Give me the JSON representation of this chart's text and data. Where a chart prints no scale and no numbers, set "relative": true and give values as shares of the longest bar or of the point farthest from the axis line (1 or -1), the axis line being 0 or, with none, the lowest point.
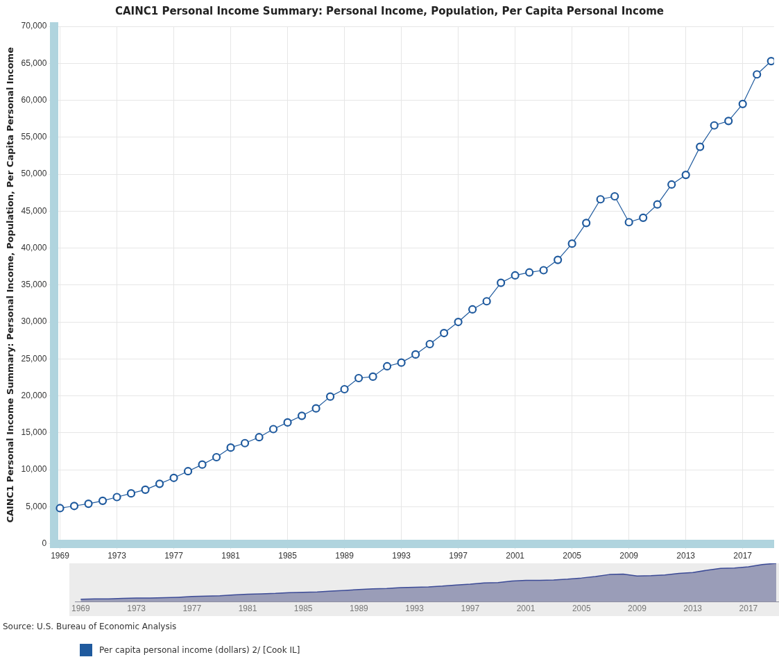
{
  "chart_data": [
    {
      "type": "line",
      "title": "CAINC1 Personal Income Summary: Personal Income, Population, Per Capita Personal Income",
      "ylabel": "CAINC1 Personal Income Summary: Personal Income, Population, Per Capita Personal Income",
      "x": [
        1969,
        1970,
        1971,
        1972,
        1973,
        1974,
        1975,
        1976,
        1977,
        1978,
        1979,
        1980,
        1981,
        1982,
        1983,
        1984,
        1985,
        1986,
        1987,
        1988,
        1989,
        1990,
        1991,
        1992,
        1993,
        1994,
        1995,
        1996,
        1997,
        1998,
        1999,
        2000,
        2001,
        2002,
        2003,
        2004,
        2005,
        2006,
        2007,
        2008,
        2009,
        2010,
        2011,
        2012,
        2013,
        2014,
        2015,
        2016,
        2017,
        2018,
        2019
      ],
      "series": [
        {
          "name": "Per capita personal income (dollars) 2/ [Cook IL]",
          "color": "#1f5a9e",
          "values": [
            4800,
            5100,
            5400,
            5800,
            6300,
            6800,
            7300,
            8100,
            8900,
            9800,
            10700,
            11700,
            13000,
            13600,
            14400,
            15500,
            16400,
            17300,
            18300,
            19900,
            20900,
            22400,
            22600,
            24000,
            24500,
            25600,
            27000,
            28500,
            30000,
            31700,
            32800,
            35300,
            36300,
            36700,
            37000,
            38400,
            40600,
            43400,
            46600,
            47000,
            43500,
            44100,
            45900,
            48600,
            49900,
            53700,
            56600,
            57200,
            59500,
            63500,
            65300
          ]
        }
      ],
      "xlim": [
        1968.6,
        2019.2
      ],
      "xticks": [
        1969,
        1973,
        1977,
        1981,
        1985,
        1989,
        1993,
        1997,
        2001,
        2005,
        2009,
        2013,
        2017
      ],
      "ylim": [
        0,
        70000
      ],
      "yticks": [
        {
          "value": 0,
          "label": "0"
        },
        {
          "value": 5000,
          "label": "5,000"
        },
        {
          "value": 10000,
          "label": "10,000"
        },
        {
          "value": 15000,
          "label": "15,000"
        },
        {
          "value": 20000,
          "label": "20,000"
        },
        {
          "value": 25000,
          "label": "25,000"
        },
        {
          "value": 30000,
          "label": "30,000"
        },
        {
          "value": 35000,
          "label": "35,000"
        },
        {
          "value": 40000,
          "label": "40,000"
        },
        {
          "value": 45000,
          "label": "45,000"
        },
        {
          "value": 50000,
          "label": "50,000"
        },
        {
          "value": 55000,
          "label": "55,000"
        },
        {
          "value": 60000,
          "label": "60,000"
        },
        {
          "value": 65000,
          "label": "65,000"
        },
        {
          "value": 70000,
          "label": "70,000"
        }
      ],
      "grid": true,
      "marker": "circle",
      "line_style": "solid",
      "legend": "bottom",
      "annotations": [
        "Source: U.S. Bureau of Economic Analysis"
      ]
    },
    {
      "type": "area",
      "x": [
        1969,
        1970,
        1971,
        1972,
        1973,
        1974,
        1975,
        1976,
        1977,
        1978,
        1979,
        1980,
        1981,
        1982,
        1983,
        1984,
        1985,
        1986,
        1987,
        1988,
        1989,
        1990,
        1991,
        1992,
        1993,
        1994,
        1995,
        1996,
        1997,
        1998,
        1999,
        2000,
        2001,
        2002,
        2003,
        2004,
        2005,
        2006,
        2007,
        2008,
        2009,
        2010,
        2011,
        2012,
        2013,
        2014,
        2015,
        2016,
        2017,
        2018,
        2019
      ],
      "series": [
        {
          "color": "#9a9db8",
          "values": [
            0.07,
            0.08,
            0.08,
            0.09,
            0.1,
            0.1,
            0.11,
            0.12,
            0.14,
            0.15,
            0.16,
            0.18,
            0.2,
            0.21,
            0.22,
            0.24,
            0.25,
            0.26,
            0.28,
            0.3,
            0.32,
            0.34,
            0.35,
            0.37,
            0.38,
            0.39,
            0.41,
            0.44,
            0.46,
            0.49,
            0.5,
            0.54,
            0.56,
            0.56,
            0.57,
            0.59,
            0.62,
            0.66,
            0.71,
            0.72,
            0.67,
            0.68,
            0.7,
            0.74,
            0.76,
            0.82,
            0.87,
            0.88,
            0.91,
            0.97,
            1
          ]
        }
      ],
      "xlim": [
        1968.6,
        2019.2
      ],
      "xticks": [
        1969,
        1973,
        1977,
        1981,
        1985,
        1989,
        1993,
        1997,
        2001,
        2005,
        2009,
        2013,
        2017
      ],
      "relative": true,
      "tick_labels": "x"
    }
  ]
}
